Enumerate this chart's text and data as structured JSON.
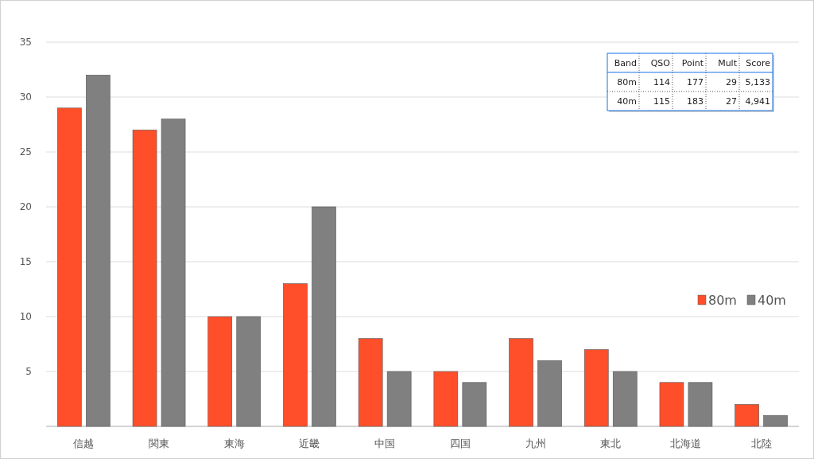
{
  "chart_data": {
    "type": "bar",
    "categories": [
      "信越",
      "関東",
      "東海",
      "近畿",
      "中国",
      "四国",
      "九州",
      "東北",
      "北海道",
      "北陸"
    ],
    "series": [
      {
        "name": "80m",
        "color": "#ff4f2a",
        "values": [
          29,
          27,
          10,
          13,
          8,
          5,
          8,
          7,
          4,
          2
        ]
      },
      {
        "name": "40m",
        "color": "#808080",
        "values": [
          32,
          28,
          10,
          20,
          5,
          4,
          6,
          5,
          4,
          1
        ]
      }
    ],
    "ylim": [
      0,
      35
    ],
    "yticks": [
      {
        "value": 0,
        "label": null
      },
      5,
      10,
      15,
      20,
      25,
      30,
      35
    ],
    "grid": "y",
    "legend": "right",
    "annotations": [
      "Band",
      "QSO",
      "Point",
      "Mult",
      "Score",
      "80m",
      "114",
      "177",
      "29",
      "5,133",
      "40m",
      "115",
      "183",
      "27",
      "4,941"
    ]
  }
}
